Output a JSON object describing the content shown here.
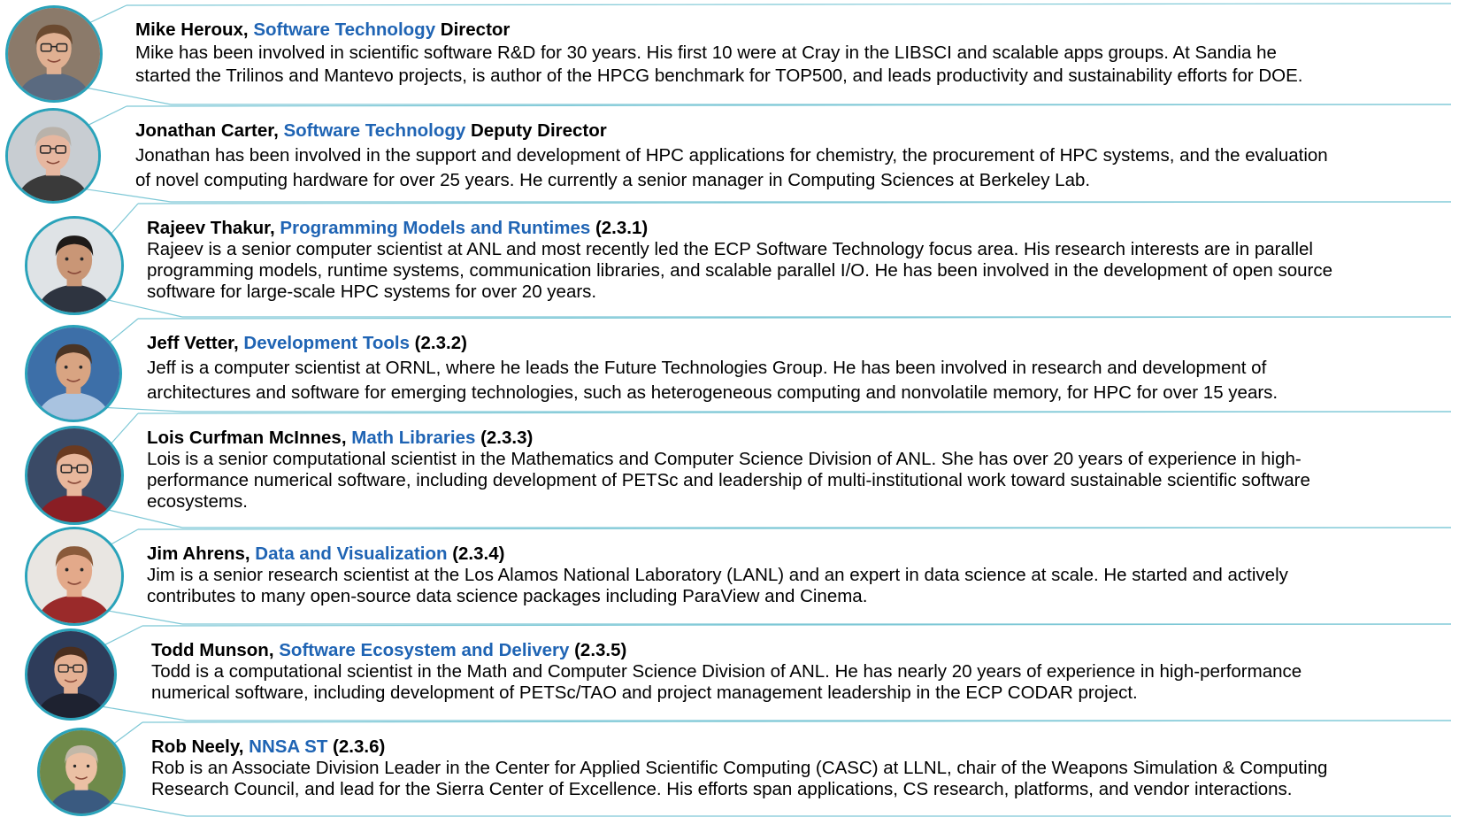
{
  "people": [
    {
      "name": "Mike Heroux",
      "role": "Software Technology",
      "suffix": " Director",
      "bio": [
        "Mike has been involved in scientific software R&D for 30 years.  His first 10 were at Cray in the LIBSCI and scalable apps groups. At Sandia he",
        "started the Trilinos and Mantevo projects, is author of the HPCG benchmark for TOP500, and leads productivity and sustainability efforts for DOE."
      ],
      "photo": {
        "bg": "#8b7a6a",
        "skin": "#e0b092",
        "hair": "#6b4a30",
        "shirt": "#5a6a80",
        "glasses": true
      }
    },
    {
      "name": "Jonathan Carter",
      "role": "Software Technology",
      "suffix": " Deputy Director",
      "bio": [
        "Jonathan has been involved in the support and development of HPC applications for chemistry, the procurement of HPC systems, and the evaluation",
        "of novel computing hardware for over 25 years. He currently a senior manager in Computing Sciences at Berkeley Lab."
      ],
      "photo": {
        "bg": "#c8cdd2",
        "skin": "#e6b7a0",
        "hair": "#b9b2aa",
        "shirt": "#3a3a3a",
        "glasses": true
      }
    },
    {
      "name": "Rajeev Thakur",
      "role": "Programming Models and Runtimes",
      "suffix": " (2.3.1)",
      "bio": [
        "Rajeev is a senior computer scientist at ANL and most recently led the ECP Software Technology focus area. His research interests are in parallel",
        "programming models, runtime systems, communication libraries, and scalable parallel I/O. He has been involved in the development of open source",
        "software for large-scale HPC systems for over 20 years."
      ],
      "photo": {
        "bg": "#dfe3e6",
        "skin": "#c99676",
        "hair": "#1e1a18",
        "shirt": "#2e3440",
        "glasses": false
      }
    },
    {
      "name": "Jeff Vetter",
      "role": "Development Tools",
      "suffix": " (2.3.2)",
      "bio": [
        "Jeff is a computer scientist at ORNL, where he leads the Future Technologies Group. He has been involved in research and development of",
        "architectures and software for emerging technologies, such as heterogeneous computing and nonvolatile memory, for HPC for over 15 years."
      ],
      "photo": {
        "bg": "#3d6fa8",
        "skin": "#d8a482",
        "hair": "#4a3424",
        "shirt": "#a9c3e0",
        "glasses": false
      }
    },
    {
      "name": "Lois Curfman McInnes",
      "role": "Math Libraries",
      "suffix": " (2.3.3)",
      "bio": [
        "Lois is a senior computational scientist in the Mathematics and Computer Science Division of ANL. She has over 20 years of experience in high-",
        "performance numerical software, including development of PETSc and leadership of multi-institutional work toward sustainable scientific software",
        "ecosystems."
      ],
      "photo": {
        "bg": "#3a4a66",
        "skin": "#e8b79c",
        "hair": "#6a3a20",
        "shirt": "#8a1e24",
        "glasses": true
      }
    },
    {
      "name": "Jim Ahrens",
      "role": "Data and Visualization",
      "suffix": " (2.3.4)",
      "bio": [
        "Jim is a senior research scientist at the Los Alamos National Laboratory (LANL) and an expert in data science at scale. He started and actively",
        "contributes to many open-source data science packages including ParaView and Cinema."
      ],
      "photo": {
        "bg": "#e9e6e2",
        "skin": "#e3a98a",
        "hair": "#8a5a3a",
        "shirt": "#9a2a2a",
        "glasses": false
      }
    },
    {
      "name": "Todd Munson",
      "role": "Software Ecosystem and Delivery",
      "suffix": " (2.3.5)",
      "bio": [
        "Todd is a computational scientist in the Math and Computer Science Division of ANL. He has nearly 20 years of experience in high-performance",
        "numerical software, including development of PETSc/TAO and project management leadership in the ECP CODAR project."
      ],
      "photo": {
        "bg": "#2e3c5a",
        "skin": "#e4b093",
        "hair": "#4a2e1e",
        "shirt": "#1e2230",
        "glasses": true
      }
    },
    {
      "name": "Rob Neely",
      "role": "NNSA ST",
      "suffix": " (2.3.6)",
      "bio": [
        "Rob is an Associate Division Leader in the Center for Applied Scientific Computing (CASC) at LLNL, chair of the Weapons Simulation & Computing",
        "Research Council, and lead for the Sierra Center of Excellence. His efforts span applications, CS research, platforms, and vendor interactions."
      ],
      "photo": {
        "bg": "#6f8a4a",
        "skin": "#ebc0a4",
        "hair": "#c2b8a8",
        "shirt": "#3a5a80",
        "glasses": false
      }
    }
  ],
  "colors": {
    "accent": "#1f64b4",
    "ring": "#2aa3ba",
    "connector": "#7ec8d6"
  }
}
